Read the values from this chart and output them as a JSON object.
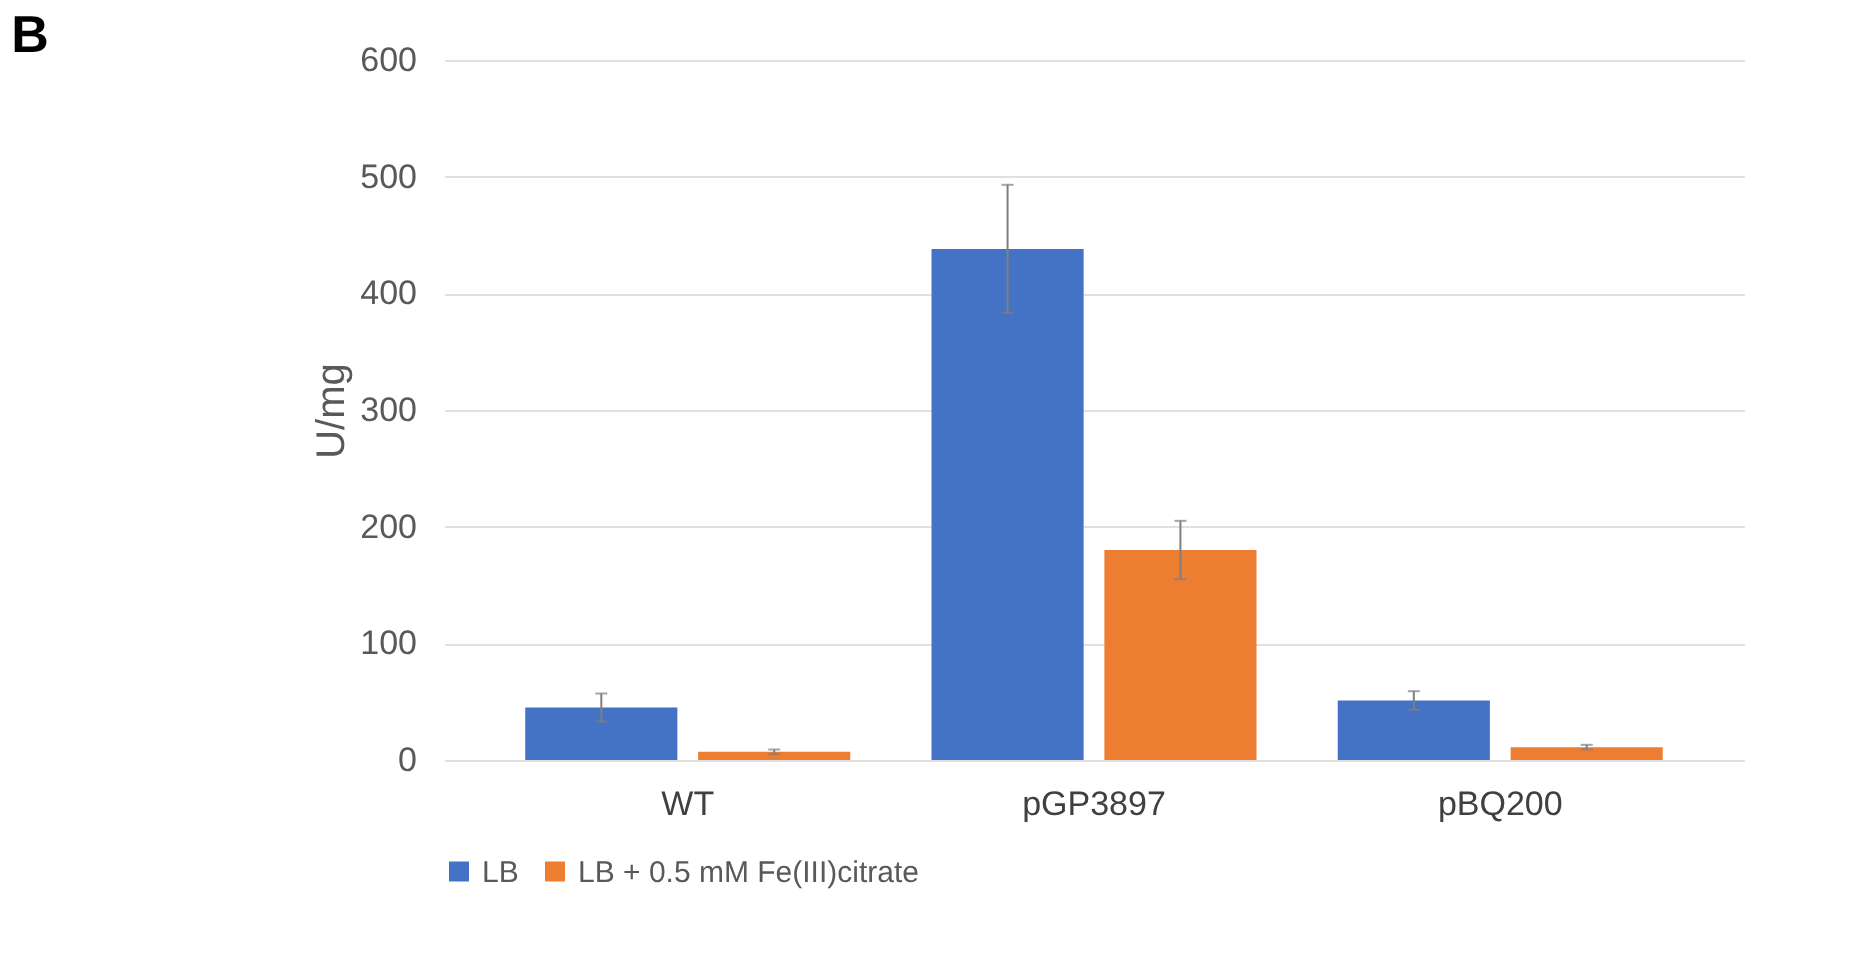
{
  "chart_data": {
    "type": "bar",
    "ylabel": "U/mg",
    "annotations": [
      "B"
    ],
    "categories": [
      "WT",
      "pGP3897",
      "pBQ200"
    ],
    "series": [
      {
        "name": "LB",
        "color": "#4472c4",
        "values": [
          45,
          438,
          51
        ],
        "errors": [
          12,
          55,
          8
        ]
      },
      {
        "name": "LB + 0.5 mM Fe(III)citrate",
        "color": "#ed7d31",
        "values": [
          7,
          180,
          11
        ],
        "errors": [
          2,
          25,
          2
        ]
      }
    ],
    "ylim": [
      0,
      600
    ],
    "yticks": [
      0,
      100,
      200,
      300,
      400,
      500,
      600
    ],
    "grid": "y",
    "legend": "bottom"
  }
}
